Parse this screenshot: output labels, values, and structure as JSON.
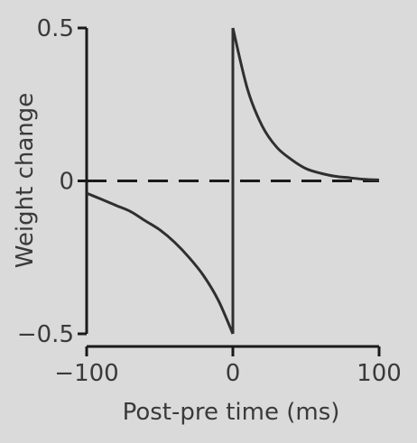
{
  "chart_data": {
    "type": "line",
    "xlabel": "Post-pre time (ms)",
    "ylabel": "Weight change",
    "xlim": [
      -100,
      100
    ],
    "ylim": [
      -0.5,
      0.5
    ],
    "x_ticks": [
      "−100",
      "0",
      "100"
    ],
    "y_ticks": [
      "0.5",
      "0",
      "−0.5"
    ],
    "x_tick_values": [
      -100,
      0,
      100
    ],
    "y_tick_values": [
      0.5,
      0,
      -0.5
    ],
    "grid": false,
    "reference_line": {
      "y": 0,
      "style": "dashed"
    },
    "series": [
      {
        "segment": "negative",
        "x": [
          -100,
          -90,
          -80,
          -70,
          -60,
          -50,
          -40,
          -30,
          -20,
          -10,
          0
        ],
        "y": [
          -0.04,
          -0.06,
          -0.08,
          -0.1,
          -0.13,
          -0.16,
          -0.2,
          -0.25,
          -0.31,
          -0.39,
          -0.5
        ]
      },
      {
        "segment": "positive",
        "x": [
          0,
          10,
          20,
          30,
          40,
          50,
          60,
          70,
          80,
          90,
          100
        ],
        "y": [
          0.5,
          0.3,
          0.18,
          0.11,
          0.07,
          0.04,
          0.025,
          0.015,
          0.01,
          0.005,
          0.003
        ]
      }
    ],
    "colors": {
      "line": "#2f2f2f",
      "axis": "#1a1a1a",
      "background": "#dadada"
    }
  }
}
